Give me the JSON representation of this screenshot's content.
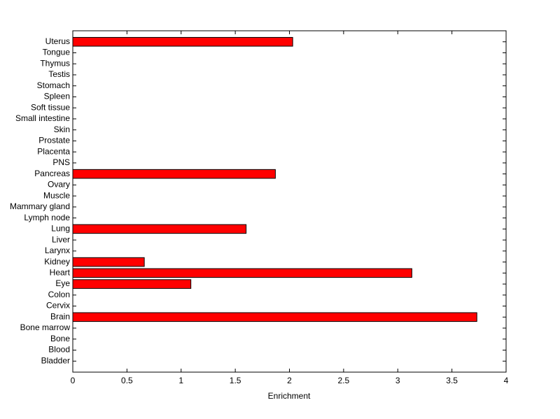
{
  "chart_data": {
    "type": "barh",
    "xlabel": "Enrichment",
    "categories": [
      "Bladder",
      "Blood",
      "Bone",
      "Bone marrow",
      "Brain",
      "Cervix",
      "Colon",
      "Eye",
      "Heart",
      "Kidney",
      "Larynx",
      "Liver",
      "Lung",
      "Lymph node",
      "Mammary gland",
      "Muscle",
      "Ovary",
      "Pancreas",
      "PNS",
      "Placenta",
      "Prostate",
      "Skin",
      "Small intestine",
      "Soft tissue",
      "Spleen",
      "Stomach",
      "Testis",
      "Thymus",
      "Tongue",
      "Uterus"
    ],
    "values": [
      0,
      0,
      0,
      0,
      3.73,
      0,
      0,
      1.09,
      3.13,
      0.66,
      0,
      0,
      1.6,
      0,
      0,
      0,
      0,
      1.87,
      0,
      0,
      0,
      0,
      0,
      0,
      0,
      0,
      0,
      0,
      0,
      2.03
    ],
    "color": "#ff0000",
    "xlim": [
      0,
      4
    ],
    "xticks": [
      0,
      0.5,
      1,
      1.5,
      2,
      2.5,
      3,
      3.5,
      4
    ],
    "grid": false
  }
}
